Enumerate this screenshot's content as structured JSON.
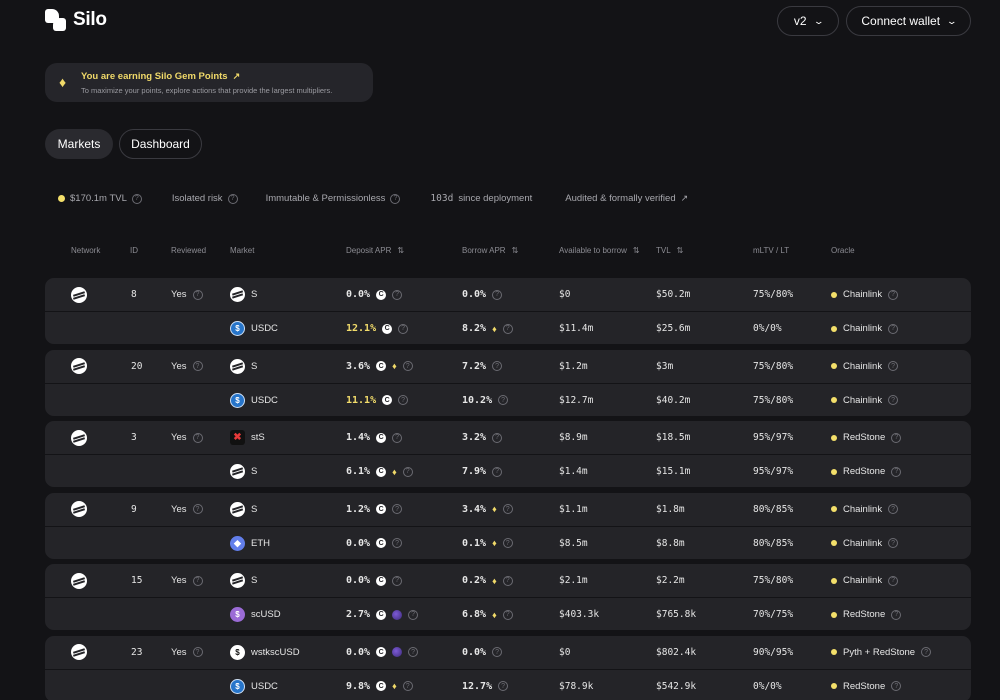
{
  "app": {
    "name": "Silo"
  },
  "header": {
    "version_label": "v2",
    "connect_label": "Connect wallet"
  },
  "gem_banner": {
    "title": "You are earning Silo Gem Points",
    "subtitle": "To maximize your points, explore actions that provide the largest multipliers."
  },
  "tabs": [
    {
      "label": "Markets",
      "active": true
    },
    {
      "label": "Dashboard",
      "active": false
    }
  ],
  "stats": {
    "tvl": "$170.1m TVL",
    "isolated": "Isolated risk",
    "immutable": "Immutable & Permissionless",
    "days": "103d",
    "days_suffix": "since deployment",
    "audited": "Audited & formally verified"
  },
  "columns": {
    "network": "Network",
    "id": "ID",
    "reviewed": "Reviewed",
    "market": "Market",
    "deposit_apr": "Deposit APR",
    "borrow_apr": "Borrow APR",
    "available": "Available to borrow",
    "tvl": "TVL",
    "ltv": "mLTV / LT",
    "oracle": "Oracle"
  },
  "colors": {
    "accent_yellow": "#f2dc6b",
    "row_bg": "#242428",
    "page_bg": "#131316"
  },
  "markets": [
    {
      "id": "8",
      "reviewed": "Yes",
      "rows": [
        {
          "token": "S",
          "icon": "sonic",
          "deposit": "0.0%",
          "deposit_hl": false,
          "deposit_icons": [
            "r"
          ],
          "borrow": "0.0%",
          "borrow_icons": [],
          "available": "$0",
          "tvl": "$50.2m",
          "ltv": "75%/80%",
          "oracle": "Chainlink"
        },
        {
          "token": "USDC",
          "icon": "usdc",
          "deposit": "12.1%",
          "deposit_hl": true,
          "deposit_icons": [
            "r"
          ],
          "borrow": "8.2%",
          "borrow_icons": [
            "g"
          ],
          "available": "$11.4m",
          "tvl": "$25.6m",
          "ltv": "0%/0%",
          "oracle": "Chainlink"
        }
      ]
    },
    {
      "id": "20",
      "reviewed": "Yes",
      "rows": [
        {
          "token": "S",
          "icon": "sonic",
          "deposit": "3.6%",
          "deposit_hl": false,
          "deposit_icons": [
            "r",
            "g"
          ],
          "borrow": "7.2%",
          "borrow_icons": [],
          "available": "$1.2m",
          "tvl": "$3m",
          "ltv": "75%/80%",
          "oracle": "Chainlink"
        },
        {
          "token": "USDC",
          "icon": "usdc",
          "deposit": "11.1%",
          "deposit_hl": true,
          "deposit_icons": [
            "r"
          ],
          "borrow": "10.2%",
          "borrow_icons": [],
          "available": "$12.7m",
          "tvl": "$40.2m",
          "ltv": "75%/80%",
          "oracle": "Chainlink"
        }
      ]
    },
    {
      "id": "3",
      "reviewed": "Yes",
      "rows": [
        {
          "token": "stS",
          "icon": "sts",
          "deposit": "1.4%",
          "deposit_hl": false,
          "deposit_icons": [
            "r"
          ],
          "borrow": "3.2%",
          "borrow_icons": [],
          "available": "$8.9m",
          "tvl": "$18.5m",
          "ltv": "95%/97%",
          "oracle": "RedStone"
        },
        {
          "token": "S",
          "icon": "sonic",
          "deposit": "6.1%",
          "deposit_hl": false,
          "deposit_icons": [
            "r",
            "g"
          ],
          "borrow": "7.9%",
          "borrow_icons": [],
          "available": "$1.4m",
          "tvl": "$15.1m",
          "ltv": "95%/97%",
          "oracle": "RedStone"
        }
      ]
    },
    {
      "id": "9",
      "reviewed": "Yes",
      "rows": [
        {
          "token": "S",
          "icon": "sonic",
          "deposit": "1.2%",
          "deposit_hl": false,
          "deposit_icons": [
            "r"
          ],
          "borrow": "3.4%",
          "borrow_icons": [
            "g"
          ],
          "available": "$1.1m",
          "tvl": "$1.8m",
          "ltv": "80%/85%",
          "oracle": "Chainlink"
        },
        {
          "token": "ETH",
          "icon": "eth",
          "deposit": "0.0%",
          "deposit_hl": false,
          "deposit_icons": [
            "r"
          ],
          "borrow": "0.1%",
          "borrow_icons": [
            "g"
          ],
          "available": "$8.5m",
          "tvl": "$8.8m",
          "ltv": "80%/85%",
          "oracle": "Chainlink"
        }
      ]
    },
    {
      "id": "15",
      "reviewed": "Yes",
      "rows": [
        {
          "token": "S",
          "icon": "sonic",
          "deposit": "0.0%",
          "deposit_hl": false,
          "deposit_icons": [
            "r"
          ],
          "borrow": "0.2%",
          "borrow_icons": [
            "g"
          ],
          "available": "$2.1m",
          "tvl": "$2.2m",
          "ltv": "75%/80%",
          "oracle": "Chainlink"
        },
        {
          "token": "scUSD",
          "icon": "scusd",
          "deposit": "2.7%",
          "deposit_hl": false,
          "deposit_icons": [
            "r",
            "p"
          ],
          "borrow": "6.8%",
          "borrow_icons": [
            "g"
          ],
          "available": "$403.3k",
          "tvl": "$765.8k",
          "ltv": "70%/75%",
          "oracle": "RedStone"
        }
      ]
    },
    {
      "id": "23",
      "reviewed": "Yes",
      "rows": [
        {
          "token": "wstkscUSD",
          "icon": "wst",
          "deposit": "0.0%",
          "deposit_hl": false,
          "deposit_icons": [
            "r",
            "p"
          ],
          "borrow": "0.0%",
          "borrow_icons": [],
          "available": "$0",
          "tvl": "$802.4k",
          "ltv": "90%/95%",
          "oracle": "Pyth + RedStone"
        },
        {
          "token": "USDC",
          "icon": "usdc",
          "deposit": "9.8%",
          "deposit_hl": false,
          "deposit_icons": [
            "r",
            "g"
          ],
          "borrow": "12.7%",
          "borrow_icons": [],
          "available": "$78.9k",
          "tvl": "$542.9k",
          "ltv": "0%/0%",
          "oracle": "RedStone"
        }
      ]
    }
  ]
}
